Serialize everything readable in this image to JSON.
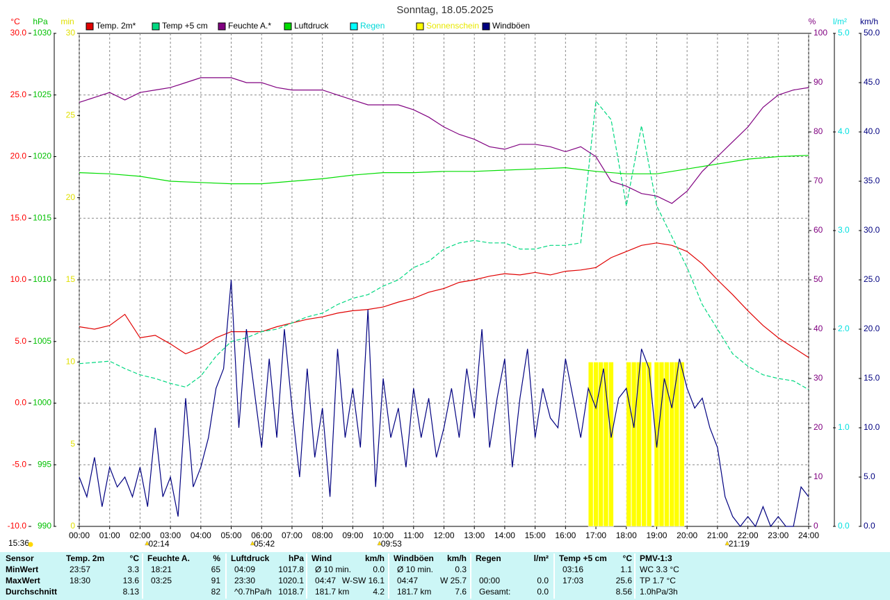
{
  "chart_data": {
    "type": "line",
    "title": "Sonntag, 18.05.2025",
    "xlim": [
      0,
      24
    ],
    "xticks": [
      {
        "value": 0,
        "label": "00:00"
      },
      {
        "value": 1,
        "label": "01:00"
      },
      {
        "value": 2,
        "label": "02:00"
      },
      {
        "value": 3,
        "label": "03:00"
      },
      {
        "value": 4,
        "label": "04:00"
      },
      {
        "value": 5,
        "label": "05:00"
      },
      {
        "value": 6,
        "label": "06:00"
      },
      {
        "value": 7,
        "label": "07:00"
      },
      {
        "value": 8,
        "label": "08:00"
      },
      {
        "value": 9,
        "label": "09:00"
      },
      {
        "value": 10,
        "label": "10:00"
      },
      {
        "value": 11,
        "label": "11:00"
      },
      {
        "value": 12,
        "label": "12:00"
      },
      {
        "value": 13,
        "label": "13:00"
      },
      {
        "value": 14,
        "label": "14:00"
      },
      {
        "value": 15,
        "label": "15:00"
      },
      {
        "value": 16,
        "label": "16:00"
      },
      {
        "value": 17,
        "label": "17:00"
      },
      {
        "value": 18,
        "label": "18:00"
      },
      {
        "value": 19,
        "label": "19:00"
      },
      {
        "value": 20,
        "label": "20:00"
      },
      {
        "value": 21,
        "label": "21:00"
      },
      {
        "value": 22,
        "label": "22:00"
      },
      {
        "value": 23,
        "label": "23:00"
      },
      {
        "value": 24,
        "label": "24:00"
      }
    ],
    "grid": true,
    "axes": [
      {
        "unit": "°C",
        "color": "#ff0000",
        "lim": [
          -10,
          30
        ],
        "ticks": [
          {
            "value": -10,
            "label": "-10.0"
          },
          {
            "value": -5,
            "label": "-5.0"
          },
          {
            "value": 0,
            "label": "0.0"
          },
          {
            "value": 5,
            "label": "5.0"
          },
          {
            "value": 10,
            "label": "10.0"
          },
          {
            "value": 15,
            "label": "15.0"
          },
          {
            "value": 20,
            "label": "20.0"
          },
          {
            "value": 25,
            "label": "25.0"
          },
          {
            "value": 30,
            "label": "30.0"
          }
        ]
      },
      {
        "unit": "hPa",
        "color": "#00c000",
        "lim": [
          990,
          1030
        ],
        "ticks": [
          990,
          995,
          1000,
          1005,
          1010,
          1015,
          1020,
          1025,
          1030
        ]
      },
      {
        "unit": "min",
        "color": "#e0e000",
        "lim": [
          0,
          30
        ],
        "ticks": [
          0,
          5,
          10,
          15,
          20,
          25,
          30
        ]
      },
      {
        "unit": "%",
        "color": "#800080",
        "lim": [
          0,
          100
        ],
        "ticks": [
          0,
          10,
          20,
          30,
          40,
          50,
          60,
          70,
          80,
          90,
          100
        ]
      },
      {
        "unit": "l/m²",
        "color": "#00e0e0",
        "lim": [
          0,
          5
        ],
        "ticks": [
          {
            "value": 0,
            "label": "0.0"
          },
          {
            "value": 1,
            "label": "1.0"
          },
          {
            "value": 2,
            "label": "2.0"
          },
          {
            "value": 3,
            "label": "3.0"
          },
          {
            "value": 4,
            "label": "4.0"
          },
          {
            "value": 5,
            "label": "5.0"
          }
        ]
      },
      {
        "unit": "km/h",
        "color": "#000080",
        "lim": [
          0,
          50
        ],
        "ticks": [
          {
            "value": 0,
            "label": "0.0"
          },
          {
            "value": 5,
            "label": "5.0"
          },
          {
            "value": 10,
            "label": "10.0"
          },
          {
            "value": 15,
            "label": "15.0"
          },
          {
            "value": 20,
            "label": "20.0"
          },
          {
            "value": 25,
            "label": "25.0"
          },
          {
            "value": 30,
            "label": "30.0"
          },
          {
            "value": 35,
            "label": "35.0"
          },
          {
            "value": 40,
            "label": "40.0"
          },
          {
            "value": 45,
            "label": "45.0"
          },
          {
            "value": 50,
            "label": "50.0"
          }
        ]
      }
    ],
    "series": [
      {
        "name": "Temp. 2m*",
        "color": "#e00000",
        "axis": 0,
        "type": "line",
        "x": [
          0,
          0.5,
          1,
          1.5,
          2,
          2.5,
          3,
          3.5,
          4,
          4.5,
          5,
          5.5,
          6,
          6.5,
          7,
          7.5,
          8,
          8.5,
          9,
          9.5,
          10,
          10.5,
          11,
          11.5,
          12,
          12.5,
          13,
          13.5,
          14,
          14.5,
          15,
          15.5,
          16,
          16.5,
          17,
          17.5,
          18,
          18.5,
          19,
          19.5,
          20,
          20.5,
          21,
          21.5,
          22,
          22.5,
          23,
          23.5,
          24
        ],
        "values": [
          6.2,
          6.0,
          6.3,
          7.2,
          5.3,
          5.5,
          4.8,
          4.0,
          4.5,
          5.3,
          5.8,
          5.8,
          5.8,
          6.2,
          6.5,
          6.8,
          7.0,
          7.3,
          7.5,
          7.6,
          7.8,
          8.2,
          8.5,
          9.0,
          9.3,
          9.8,
          10.0,
          10.3,
          10.5,
          10.4,
          10.6,
          10.4,
          10.7,
          10.8,
          11.0,
          11.8,
          12.3,
          12.8,
          13.0,
          12.8,
          12.3,
          11.3,
          10.0,
          8.8,
          7.5,
          6.3,
          5.3,
          4.5,
          3.7
        ]
      },
      {
        "name": "Temp +5 cm",
        "color": "#00d880",
        "axis": 0,
        "type": "line",
        "dash": true,
        "x": [
          0,
          0.5,
          1,
          1.5,
          2,
          2.5,
          3,
          3.5,
          4,
          4.5,
          5,
          5.5,
          6,
          6.5,
          7,
          7.5,
          8,
          8.5,
          9,
          9.5,
          10,
          10.5,
          11,
          11.5,
          12,
          12.5,
          13,
          13.5,
          14,
          14.5,
          15,
          15.5,
          16,
          16.5,
          17,
          17.5,
          18,
          18.5,
          19,
          19.5,
          20,
          20.5,
          21,
          21.5,
          22,
          22.5,
          23,
          23.5,
          24
        ],
        "values": [
          3.2,
          3.3,
          3.4,
          2.8,
          2.3,
          2.0,
          1.6,
          1.3,
          2.2,
          3.8,
          5.0,
          5.3,
          5.8,
          6.0,
          6.5,
          7.0,
          7.3,
          8.0,
          8.5,
          8.8,
          9.5,
          10.0,
          11.0,
          11.5,
          12.5,
          13.0,
          13.2,
          13.0,
          13.0,
          12.5,
          12.5,
          12.8,
          12.8,
          13.0,
          24.5,
          23.0,
          16.0,
          22.5,
          16.0,
          13.5,
          11.0,
          8.0,
          6.0,
          4.0,
          3.0,
          2.3,
          2.0,
          1.8,
          1.1
        ]
      },
      {
        "name": "Feuchte A.*",
        "color": "#800080",
        "axis": 3,
        "type": "line",
        "x": [
          0,
          0.5,
          1,
          1.5,
          2,
          2.5,
          3,
          3.5,
          4,
          4.5,
          5,
          5.5,
          6,
          6.5,
          7,
          7.5,
          8,
          8.5,
          9,
          9.5,
          10,
          10.5,
          11,
          11.5,
          12,
          12.5,
          13,
          13.5,
          14,
          14.5,
          15,
          15.5,
          16,
          16.5,
          17,
          17.5,
          18,
          18.5,
          19,
          19.5,
          20,
          20.5,
          21,
          21.5,
          22,
          22.5,
          23,
          23.5,
          24
        ],
        "values": [
          86,
          87,
          88,
          86.5,
          88,
          88.5,
          89,
          90,
          91,
          91,
          91,
          90,
          90,
          89,
          88.5,
          88.5,
          88.5,
          87.5,
          86.5,
          85.5,
          85.5,
          85.5,
          84.5,
          83,
          81,
          79.5,
          78.5,
          77,
          76.5,
          77.5,
          77.5,
          77,
          76,
          77,
          75,
          70,
          69,
          67.5,
          67,
          65.5,
          68,
          72,
          75,
          78,
          81,
          85,
          87.5,
          88.5,
          89
        ]
      },
      {
        "name": "Luftdruck",
        "color": "#00dd00",
        "axis": 1,
        "type": "line",
        "x": [
          0,
          1,
          2,
          3,
          4,
          5,
          6,
          7,
          8,
          9,
          10,
          11,
          12,
          13,
          14,
          15,
          16,
          17,
          18,
          19,
          20,
          21,
          22,
          23,
          24
        ],
        "values": [
          1018.7,
          1018.6,
          1018.4,
          1018.0,
          1017.9,
          1017.8,
          1017.8,
          1018.0,
          1018.2,
          1018.5,
          1018.7,
          1018.7,
          1018.8,
          1018.8,
          1018.9,
          1019.0,
          1019.1,
          1018.8,
          1018.6,
          1018.6,
          1019.0,
          1019.4,
          1019.8,
          1020.0,
          1020.1
        ]
      },
      {
        "name": "Regen",
        "color": "#00ffff",
        "axis": 4,
        "type": "line",
        "x": [],
        "values": []
      },
      {
        "name": "Sonnenschein",
        "color": "#ffff00",
        "axis": 2,
        "type": "bar",
        "x": [
          16.75,
          16.92,
          17.08,
          17.25,
          17.42,
          18.0,
          18.17,
          18.33,
          18.5,
          18.67,
          18.92,
          19.08,
          19.25,
          19.42,
          19.58,
          19.75
        ],
        "values": [
          10,
          10,
          10,
          10,
          10,
          10,
          10,
          10,
          10,
          10,
          10,
          10,
          10,
          10,
          10,
          10
        ]
      },
      {
        "name": "Windböen",
        "color": "#000080",
        "axis": 5,
        "type": "line",
        "x": [
          0,
          0.25,
          0.5,
          0.75,
          1,
          1.25,
          1.5,
          1.75,
          2,
          2.25,
          2.5,
          2.75,
          3,
          3.25,
          3.5,
          3.75,
          4,
          4.25,
          4.5,
          4.75,
          5,
          5.25,
          5.5,
          5.75,
          6,
          6.25,
          6.5,
          6.75,
          7,
          7.25,
          7.5,
          7.75,
          8,
          8.25,
          8.5,
          8.75,
          9,
          9.25,
          9.5,
          9.75,
          10,
          10.25,
          10.5,
          10.75,
          11,
          11.25,
          11.5,
          11.75,
          12,
          12.25,
          12.5,
          12.75,
          13,
          13.25,
          13.5,
          13.75,
          14,
          14.25,
          14.5,
          14.75,
          15,
          15.25,
          15.5,
          15.75,
          16,
          16.25,
          16.5,
          16.75,
          17,
          17.25,
          17.5,
          17.75,
          18,
          18.25,
          18.5,
          18.75,
          19,
          19.25,
          19.5,
          19.75,
          20,
          20.25,
          20.5,
          20.75,
          21,
          21.25,
          21.5,
          21.75,
          22,
          22.25,
          22.5,
          22.75,
          23,
          23.25,
          23.5,
          23.75,
          24
        ],
        "values": [
          5,
          3,
          7,
          2,
          6,
          4,
          5,
          3,
          6,
          2,
          10,
          3,
          5,
          1,
          13,
          4,
          6,
          9,
          14,
          16,
          25,
          10,
          20,
          14,
          8,
          17,
          9,
          20,
          12,
          5,
          16,
          7,
          12,
          3,
          18,
          9,
          14,
          8,
          22,
          4,
          15,
          9,
          12,
          6,
          14,
          9,
          13,
          7,
          10,
          14,
          9,
          16,
          11,
          20,
          8,
          13,
          17,
          6,
          13,
          18,
          9,
          14,
          11,
          10,
          17,
          13,
          9,
          14,
          12,
          16,
          9,
          13,
          14,
          10,
          18,
          16,
          8,
          15,
          12,
          17,
          14,
          12,
          13,
          10,
          8,
          3,
          1,
          0,
          1,
          0,
          2,
          0,
          1,
          0,
          0,
          4,
          3
        ]
      }
    ],
    "annotations": [
      {
        "x": 2.23,
        "label": "02:14"
      },
      {
        "x": 5.7,
        "label": "05:42"
      },
      {
        "x": 9.88,
        "label": "09:53"
      },
      {
        "x": 21.32,
        "label": "21:19"
      }
    ],
    "day_length": "15:36"
  },
  "table": {
    "sensor_header": "Sensor",
    "row_labels": [
      "MinWert",
      "MaxWert",
      "Durchschnitt"
    ],
    "groups": [
      {
        "title": "Temp. 2m",
        "unit": "°C",
        "rows": [
          [
            "23:57",
            "3.3"
          ],
          [
            "18:30",
            "13.6"
          ],
          [
            null,
            "8.13"
          ]
        ]
      },
      {
        "title": "Feuchte A.",
        "unit": "%",
        "rows": [
          [
            "18:21",
            "65"
          ],
          [
            "03:25",
            "91"
          ],
          [
            null,
            "82"
          ]
        ]
      },
      {
        "title": "Luftdruck",
        "unit": "hPa",
        "rows": [
          [
            "04:09",
            "1017.8"
          ],
          [
            "23:30",
            "1020.1"
          ],
          [
            "^0.7hPa/h",
            "1018.7"
          ]
        ]
      },
      {
        "title": "Wind",
        "unit": "km/h",
        "rows": [
          [
            "Ø 10 min.",
            "0.0"
          ],
          [
            "04:47",
            "W-SW 16.1"
          ],
          [
            "181.7 km",
            "4.2"
          ]
        ]
      },
      {
        "title": "Windböen",
        "unit": "km/h",
        "rows": [
          [
            "Ø 10 min.",
            "0.3"
          ],
          [
            "04:47",
            "W 25.7"
          ],
          [
            "181.7 km",
            "7.6"
          ]
        ]
      },
      {
        "title": "Regen",
        "unit": "l/m²",
        "rows": [
          [
            null,
            null
          ],
          [
            "00:00",
            "0.0"
          ],
          [
            "Gesamt:",
            "0.0"
          ]
        ]
      },
      {
        "title": "Temp +5 cm",
        "unit": "°C",
        "rows": [
          [
            "03:16",
            "1.1"
          ],
          [
            "17:03",
            "25.6"
          ],
          [
            null,
            "8.56"
          ]
        ]
      },
      {
        "title": "PMV-1:3",
        "unit": null,
        "rows": [
          [
            "WC 3.3 °C",
            null
          ],
          [
            "TP 1.7 °C",
            null
          ],
          [
            "1.0hPa/3h",
            null
          ]
        ]
      }
    ]
  }
}
